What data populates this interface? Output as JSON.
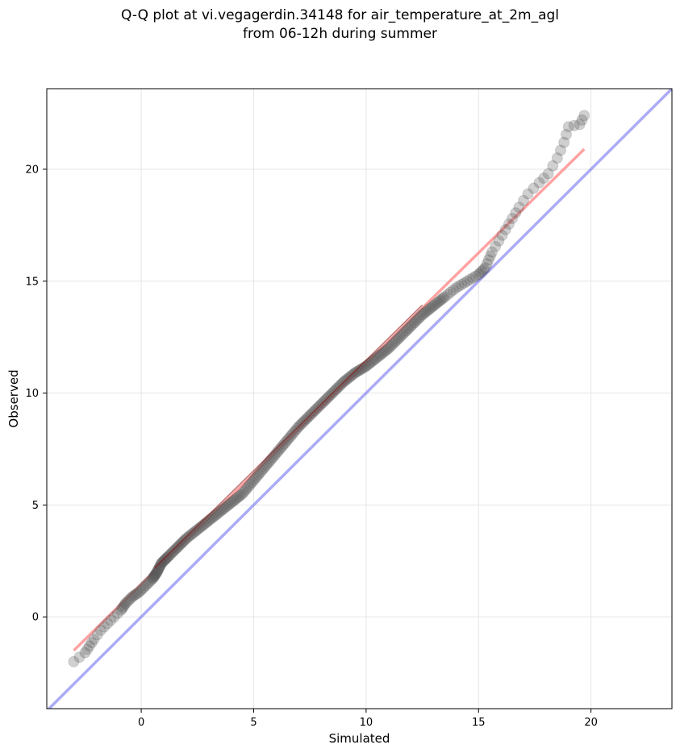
{
  "chart_data": {
    "type": "scatter",
    "title_line1": "Q-Q plot at vi.vegagerdin.34148 for air_temperature_at_2m_agl",
    "title_line2": "from 06-12h during summer",
    "xlabel": "Simulated",
    "ylabel": "Observed",
    "xlim": [
      -4.2,
      23.6
    ],
    "ylim": [
      -4.1,
      23.6
    ],
    "xticks": [
      0,
      5,
      10,
      15,
      20
    ],
    "yticks": [
      0,
      5,
      10,
      15,
      20
    ],
    "grid": true,
    "colors": {
      "points": "#555555",
      "fit_line": "#ff6666",
      "identity_line": "#6666ee",
      "inner_fit_line": "#8b0000"
    },
    "identity_line": {
      "x": [
        -4.2,
        23.6
      ],
      "y": [
        -4.2,
        23.6
      ]
    },
    "fit_line": {
      "x": [
        -3.0,
        19.7
      ],
      "y": [
        -1.5,
        20.9
      ]
    },
    "quantile_points": [
      [
        -3.0,
        -2.0
      ],
      [
        -2.5,
        -1.6
      ],
      [
        -2.3,
        -1.3
      ],
      [
        -2.1,
        -1.0
      ],
      [
        -1.8,
        -0.6
      ],
      [
        -1.5,
        -0.3
      ],
      [
        -1.2,
        0.0
      ],
      [
        -0.9,
        0.3
      ],
      [
        -0.7,
        0.6
      ],
      [
        -0.4,
        0.9
      ],
      [
        -0.1,
        1.1
      ],
      [
        0.2,
        1.4
      ],
      [
        0.5,
        1.7
      ],
      [
        0.7,
        2.0
      ],
      [
        0.9,
        2.4
      ],
      [
        1.2,
        2.7
      ],
      [
        1.6,
        3.1
      ],
      [
        2.0,
        3.5
      ],
      [
        2.5,
        3.9
      ],
      [
        3.0,
        4.3
      ],
      [
        3.5,
        4.7
      ],
      [
        4.0,
        5.1
      ],
      [
        4.5,
        5.5
      ],
      [
        5.0,
        6.1
      ],
      [
        5.5,
        6.7
      ],
      [
        6.0,
        7.3
      ],
      [
        6.5,
        7.9
      ],
      [
        7.0,
        8.5
      ],
      [
        7.5,
        9.0
      ],
      [
        8.0,
        9.5
      ],
      [
        8.5,
        10.0
      ],
      [
        9.0,
        10.5
      ],
      [
        9.5,
        10.9
      ],
      [
        10.0,
        11.2
      ],
      [
        10.5,
        11.6
      ],
      [
        11.0,
        12.0
      ],
      [
        11.5,
        12.5
      ],
      [
        12.0,
        13.0
      ],
      [
        12.5,
        13.5
      ],
      [
        13.0,
        13.9
      ],
      [
        13.5,
        14.3
      ],
      [
        14.0,
        14.7
      ],
      [
        14.5,
        15.0
      ],
      [
        15.0,
        15.3
      ],
      [
        15.3,
        15.6
      ],
      [
        15.6,
        16.3
      ],
      [
        15.9,
        16.8
      ],
      [
        16.2,
        17.3
      ],
      [
        16.5,
        17.8
      ],
      [
        16.8,
        18.3
      ],
      [
        17.2,
        18.9
      ],
      [
        17.7,
        19.4
      ],
      [
        18.1,
        19.8
      ],
      [
        18.5,
        20.5
      ],
      [
        18.8,
        21.2
      ],
      [
        19.0,
        21.9
      ],
      [
        19.5,
        22.0
      ],
      [
        19.7,
        22.4
      ]
    ]
  }
}
